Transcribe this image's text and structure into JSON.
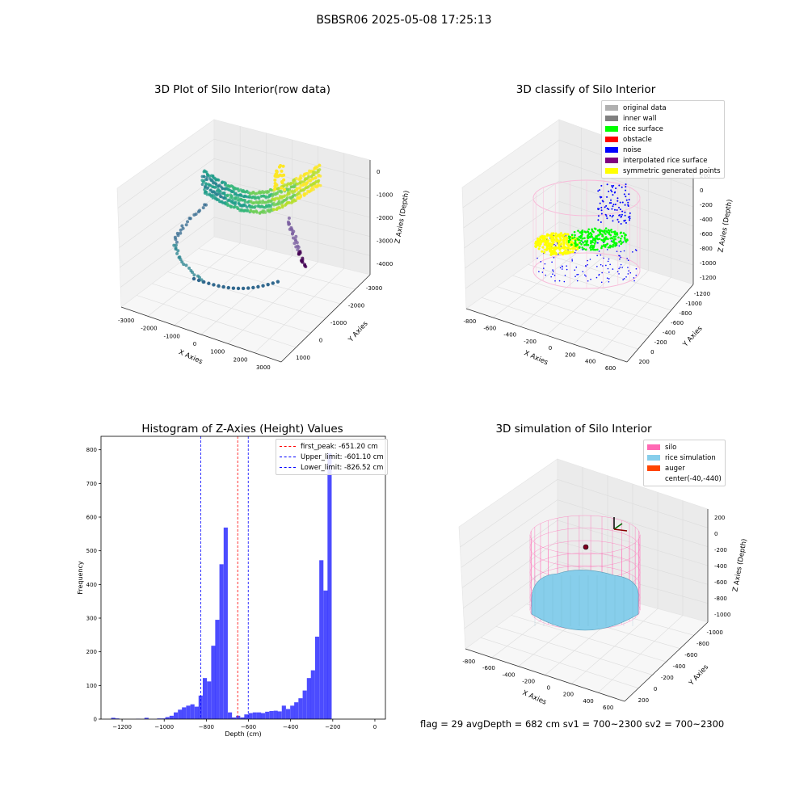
{
  "suptitle": "BSBSR06 2025-05-08 17:25:13",
  "bottom_text": "flag = 29  avgDepth = 682 cm  sv1 = 700~2300  sv2 = 700~2300",
  "chart_data": [
    {
      "type": "scatter3d",
      "title": "3D Plot of Silo Interior(row data)",
      "xlabel": "X Axies",
      "ylabel": "Y Axies",
      "zlabel": "Z Axies (Depth)",
      "xticks": [
        "-3000",
        "-2000",
        "-1000",
        "0",
        "1000",
        "2000",
        "3000"
      ],
      "yticks": [
        "1000",
        "0",
        "-1000",
        "-2000",
        "-3000"
      ],
      "zticks": [
        "0",
        "-1000",
        "-2000",
        "-3000",
        "-4000"
      ],
      "colormap": "viridis"
    },
    {
      "type": "scatter3d",
      "title": "3D classify of Silo Interior",
      "xlabel": "X Axies",
      "ylabel": "Y Axies",
      "zlabel": "Z Axies (Depth)",
      "xticks": [
        "-800",
        "-600",
        "-400",
        "-200",
        "0",
        "200",
        "400",
        "600"
      ],
      "yticks": [
        "200",
        "0",
        "-200",
        "-400",
        "-600",
        "-800",
        "-1000",
        "-1200"
      ],
      "zticks": [
        "200",
        "0",
        "-200",
        "-400",
        "-600",
        "-800",
        "-1000",
        "-1200"
      ],
      "legend": [
        {
          "label": "original data",
          "color": "#b0b0b0"
        },
        {
          "label": "inner wall",
          "color": "#808080"
        },
        {
          "label": "rice surface",
          "color": "#00ff00"
        },
        {
          "label": "obstacle",
          "color": "#ff0000"
        },
        {
          "label": "noise",
          "color": "#0000ff"
        },
        {
          "label": "interpolated rice surface",
          "color": "#800080"
        },
        {
          "label": "symmetric generated points",
          "color": "#ffff00"
        }
      ],
      "legend_position": "top-right"
    },
    {
      "type": "bar",
      "title": "Histogram of Z-Axies (Height) Values",
      "xlabel": "Depth (cm)",
      "ylabel": "Frequency",
      "xlim": [
        -1300,
        50
      ],
      "ylim": [
        0,
        840
      ],
      "xticks": [
        -1200,
        -1000,
        -800,
        -600,
        -400,
        -200,
        0
      ],
      "yticks": [
        0,
        100,
        200,
        300,
        400,
        500,
        600,
        700,
        800
      ],
      "bar_color": "#0000ff",
      "bins": [
        {
          "x": -1242,
          "y": 4
        },
        {
          "x": -1223,
          "y": 2
        },
        {
          "x": -1124,
          "y": 1
        },
        {
          "x": -1084,
          "y": 4
        },
        {
          "x": -1024,
          "y": 2
        },
        {
          "x": -1004,
          "y": 2
        },
        {
          "x": -985,
          "y": 6
        },
        {
          "x": -965,
          "y": 10
        },
        {
          "x": -945,
          "y": 20
        },
        {
          "x": -925,
          "y": 28
        },
        {
          "x": -906,
          "y": 35
        },
        {
          "x": -886,
          "y": 40
        },
        {
          "x": -866,
          "y": 44
        },
        {
          "x": -846,
          "y": 37
        },
        {
          "x": -827,
          "y": 70
        },
        {
          "x": -807,
          "y": 122
        },
        {
          "x": -787,
          "y": 112
        },
        {
          "x": -767,
          "y": 218
        },
        {
          "x": -748,
          "y": 295
        },
        {
          "x": -728,
          "y": 460
        },
        {
          "x": -708,
          "y": 569
        },
        {
          "x": -688,
          "y": 20
        },
        {
          "x": -669,
          "y": 5
        },
        {
          "x": -649,
          "y": 10
        },
        {
          "x": -629,
          "y": 5
        },
        {
          "x": -610,
          "y": 14
        },
        {
          "x": -590,
          "y": 18
        },
        {
          "x": -570,
          "y": 20
        },
        {
          "x": -550,
          "y": 20
        },
        {
          "x": -531,
          "y": 18
        },
        {
          "x": -511,
          "y": 22
        },
        {
          "x": -491,
          "y": 24
        },
        {
          "x": -471,
          "y": 25
        },
        {
          "x": -452,
          "y": 23
        },
        {
          "x": -432,
          "y": 40
        },
        {
          "x": -412,
          "y": 30
        },
        {
          "x": -392,
          "y": 40
        },
        {
          "x": -373,
          "y": 50
        },
        {
          "x": -353,
          "y": 62
        },
        {
          "x": -333,
          "y": 85
        },
        {
          "x": -313,
          "y": 122
        },
        {
          "x": -294,
          "y": 145
        },
        {
          "x": -274,
          "y": 245
        },
        {
          "x": -254,
          "y": 472
        },
        {
          "x": -234,
          "y": 382
        },
        {
          "x": -215,
          "y": 790
        }
      ],
      "bin_width": 19.7,
      "vlines": [
        {
          "label": "first_peak: -651.20 cm",
          "x": -651.2,
          "color": "#ff0000"
        },
        {
          "label": "Upper_limit: -601.10 cm",
          "x": -601.1,
          "color": "#0000ff"
        },
        {
          "label": "Lower_limit: -826.52 cm",
          "x": -826.52,
          "color": "#0000ff"
        }
      ],
      "legend_position": "top-right"
    },
    {
      "type": "surface3d",
      "title": "3D simulation of Silo Interior",
      "xlabel": "X Axies",
      "ylabel": "Y Axies",
      "zlabel": "Z Axies (Depth)",
      "xticks": [
        "-800",
        "-600",
        "-400",
        "-200",
        "0",
        "200",
        "400",
        "600"
      ],
      "yticks": [
        "200",
        "0",
        "-200",
        "-400",
        "-600",
        "-800",
        "-1000"
      ],
      "zticks": [
        "200",
        "0",
        "-200",
        "-400",
        "-600",
        "-800",
        "-1000"
      ],
      "legend": [
        {
          "label": "silo",
          "color": "#ff69b4"
        },
        {
          "label": "rice simulation",
          "color": "#87ceeb"
        },
        {
          "label": "auger",
          "color": "#ff4500"
        },
        {
          "label": "center(-40,-440)",
          "color": ""
        }
      ],
      "legend_position": "top-right"
    }
  ]
}
